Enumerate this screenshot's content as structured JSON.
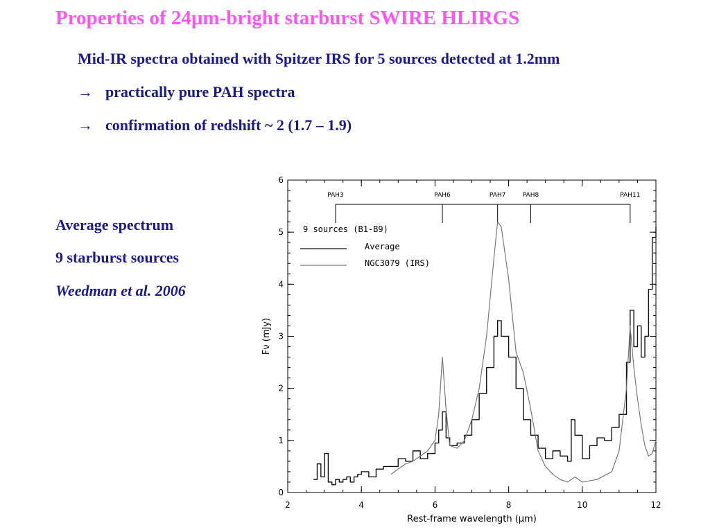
{
  "slide": {
    "title": "Properties of 24μm-bright starburst SWIRE HLIRGS",
    "intro": "Mid-IR spectra obtained with Spitzer IRS for 5 sources detected at 1.2mm",
    "arrow_glyph": "→",
    "bullets": [
      "practically pure PAH spectra",
      "confirmation of redshift ~ 2  (1.7 – 1.9)"
    ],
    "side_notes": [
      "Average spectrum",
      "9 starburst sources",
      "Weedman et al. 2006"
    ],
    "colors": {
      "title": "#ff55ee",
      "text": "#1a1a8c",
      "average_line": "#111111",
      "ngc_line": "#777777"
    }
  },
  "chart_data": {
    "type": "line",
    "xlabel": "Rest-frame wavelength (μm)",
    "ylabel": "Fν (mJy)",
    "xlim": [
      2,
      12
    ],
    "ylim": [
      0,
      6
    ],
    "x_ticks": [
      "2",
      "4",
      "6",
      "8",
      "10",
      "12"
    ],
    "y_ticks": [
      "0",
      "1",
      "2",
      "3",
      "4",
      "5",
      "6"
    ],
    "legend_title": "9 sources (B1-B9)",
    "legend_position": "top-left",
    "pah_markers": [
      {
        "label": "PAH3",
        "x": 3.3
      },
      {
        "label": "PAH6",
        "x": 6.2
      },
      {
        "label": "PAH7",
        "x": 7.7
      },
      {
        "label": "PAH8",
        "x": 8.6
      },
      {
        "label": "PAH11",
        "x": 11.3
      }
    ],
    "series": [
      {
        "name": "Average",
        "style": "step",
        "x": [
          2.7,
          2.8,
          2.9,
          3.0,
          3.1,
          3.2,
          3.3,
          3.4,
          3.5,
          3.6,
          3.7,
          3.8,
          3.9,
          4.0,
          4.2,
          4.4,
          4.6,
          4.8,
          5.0,
          5.2,
          5.4,
          5.6,
          5.8,
          6.0,
          6.1,
          6.2,
          6.3,
          6.4,
          6.6,
          6.8,
          7.0,
          7.2,
          7.4,
          7.6,
          7.7,
          7.8,
          8.0,
          8.2,
          8.4,
          8.6,
          8.8,
          9.0,
          9.2,
          9.4,
          9.6,
          9.7,
          9.8,
          10.0,
          10.2,
          10.4,
          10.6,
          10.8,
          11.0,
          11.2,
          11.3,
          11.4,
          11.5,
          11.6,
          11.7,
          11.8,
          11.9,
          12.0
        ],
        "y": [
          0.25,
          0.55,
          0.3,
          0.75,
          0.2,
          0.15,
          0.25,
          0.2,
          0.25,
          0.3,
          0.2,
          0.3,
          0.35,
          0.4,
          0.3,
          0.45,
          0.5,
          0.5,
          0.65,
          0.6,
          0.8,
          0.65,
          0.75,
          0.95,
          1.2,
          1.55,
          1.05,
          0.9,
          0.95,
          1.1,
          1.4,
          1.9,
          2.4,
          3.0,
          3.3,
          3.0,
          2.6,
          2.0,
          1.4,
          1.1,
          0.85,
          0.65,
          0.8,
          0.7,
          0.6,
          1.4,
          1.1,
          0.65,
          0.9,
          1.05,
          1.0,
          1.25,
          1.5,
          2.5,
          3.5,
          2.8,
          3.2,
          2.6,
          3.0,
          3.9,
          4.9,
          5.1
        ]
      },
      {
        "name": "NGC3079 (IRS)",
        "style": "smooth",
        "x": [
          4.8,
          5.0,
          5.2,
          5.4,
          5.6,
          5.8,
          6.0,
          6.1,
          6.2,
          6.3,
          6.4,
          6.6,
          6.8,
          7.0,
          7.2,
          7.4,
          7.6,
          7.7,
          7.8,
          8.0,
          8.2,
          8.4,
          8.6,
          8.8,
          9.0,
          9.2,
          9.4,
          9.6,
          9.8,
          10.0,
          10.4,
          10.8,
          11.0,
          11.2,
          11.3,
          11.4,
          11.5,
          11.6,
          11.7,
          11.8,
          11.9,
          12.0
        ],
        "y": [
          0.35,
          0.45,
          0.55,
          0.6,
          0.7,
          0.8,
          1.0,
          1.5,
          2.6,
          1.6,
          0.9,
          0.85,
          1.0,
          1.4,
          2.0,
          3.0,
          4.5,
          5.2,
          5.1,
          4.1,
          2.7,
          2.3,
          1.6,
          0.8,
          0.5,
          0.35,
          0.25,
          0.2,
          0.3,
          0.2,
          0.25,
          0.4,
          0.8,
          2.0,
          3.2,
          2.4,
          1.8,
          1.3,
          0.9,
          0.7,
          0.75,
          1.0
        ]
      }
    ]
  }
}
